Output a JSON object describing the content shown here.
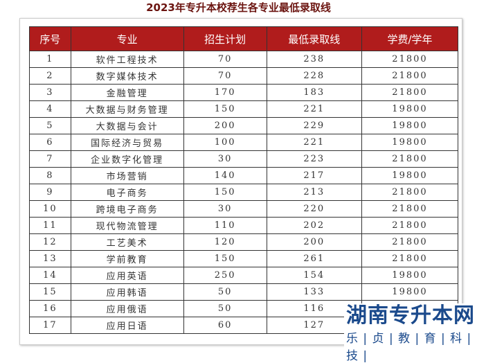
{
  "title": "2023年专升本校荐生各专业最低录取线",
  "headers": [
    "序号",
    "专业",
    "招生计划",
    "最低录取线",
    "学费/学年"
  ],
  "rows": [
    [
      "1",
      "软件工程技术",
      "70",
      "238",
      "21800"
    ],
    [
      "2",
      "数字媒体技术",
      "70",
      "228",
      "21800"
    ],
    [
      "3",
      "金融管理",
      "170",
      "183",
      "21800"
    ],
    [
      "4",
      "大数据与财务管理",
      "150",
      "221",
      "19800"
    ],
    [
      "5",
      "大数据与会计",
      "200",
      "229",
      "19800"
    ],
    [
      "6",
      "国际经济与贸易",
      "100",
      "221",
      "19800"
    ],
    [
      "7",
      "企业数字化管理",
      "30",
      "223",
      "21800"
    ],
    [
      "8",
      "市场营销",
      "140",
      "217",
      "19800"
    ],
    [
      "9",
      "电子商务",
      "150",
      "213",
      "21800"
    ],
    [
      "10",
      "跨境电子商务",
      "30",
      "220",
      "21800"
    ],
    [
      "11",
      "现代物流管理",
      "110",
      "202",
      "21800"
    ],
    [
      "12",
      "工艺美术",
      "120",
      "200",
      "21800"
    ],
    [
      "13",
      "学前教育",
      "150",
      "261",
      "21800"
    ],
    [
      "14",
      "应用英语",
      "250",
      "154",
      "19800"
    ],
    [
      "15",
      "应用韩语",
      "50",
      "133",
      "19800"
    ],
    [
      "16",
      "应用俄语",
      "50",
      "116",
      ""
    ],
    [
      "17",
      "应用日语",
      "60",
      "127",
      ""
    ]
  ],
  "watermark": {
    "line1": "湖南专升本网",
    "line2": "乐 | 贞 | 教 | 育 | 科 | 技 |"
  }
}
